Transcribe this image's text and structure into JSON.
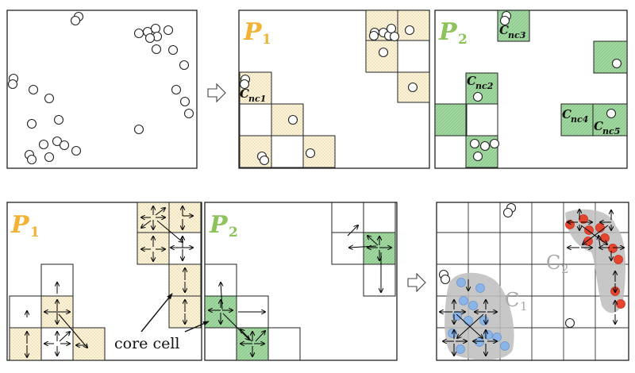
{
  "labels": {
    "p1_top": "P",
    "p1_top_sub": "1",
    "p2_top": "P",
    "p2_top_sub": "2",
    "p1_bottom": "P",
    "p1_bottom_sub": "1",
    "p2_bottom": "P",
    "p2_bottom_sub": "2",
    "cnc1": "C",
    "cnc1_sub": "nc1",
    "cnc2": "C",
    "cnc2_sub": "nc2",
    "cnc3": "C",
    "cnc3_sub": "nc3",
    "cnc4": "C",
    "cnc4_sub": "nc4",
    "cnc5": "C",
    "cnc5_sub": "nc5",
    "core_cell": "core cell",
    "c1": "C",
    "c1_sub": "1",
    "c2": "C",
    "c2_sub": "2"
  },
  "colors": {
    "p1_label": "#f2b233",
    "p2_label": "#8ec25a",
    "yellow_cell": "#fbf3dc",
    "green_cell": "#9fd79f",
    "cluster_blue": "#8bb4e8",
    "cluster_red": "#e3452e",
    "cluster_fill": "#bdbdbd",
    "cluster_label": "#a8a8a8"
  }
}
